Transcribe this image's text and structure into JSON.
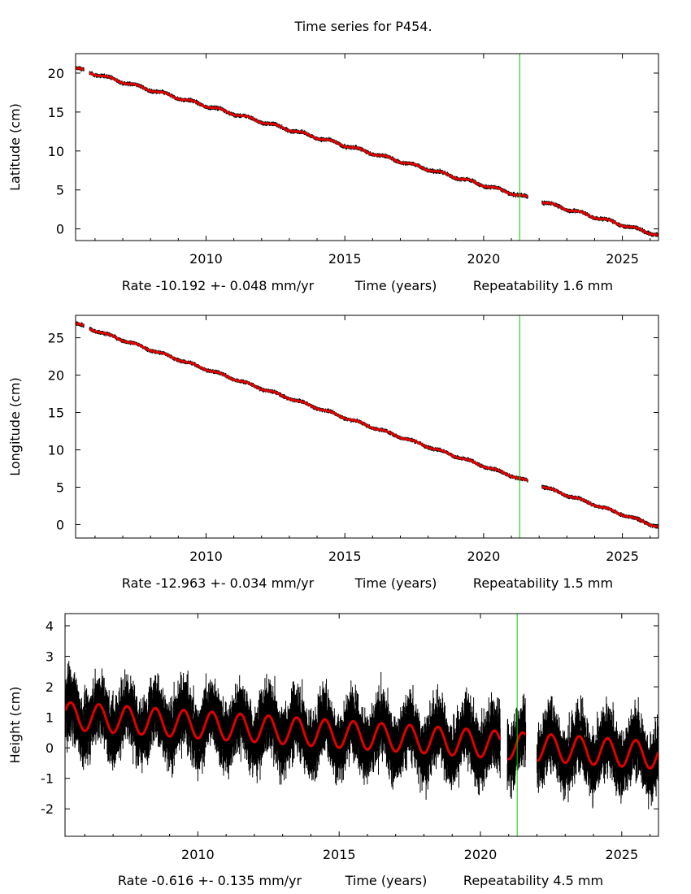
{
  "page": {
    "title": "Time series for P454."
  },
  "chart_data": [
    {
      "type": "scatter",
      "ylabel": "Latitude (cm)",
      "xlabel": "Time (years)",
      "rate_text": "Rate -10.192 +- 0.048 mm/yr",
      "repeatability_text": "Repeatability 1.6 mm",
      "xlim": [
        2005.3,
        2026.3
      ],
      "ylim": [
        -1.5,
        22.5
      ],
      "xticks": [
        2010,
        2015,
        2020,
        2025
      ],
      "xtick_labels": [
        "2010",
        "2015",
        "2020",
        "2025"
      ],
      "yticks": [
        0,
        5,
        10,
        15,
        20
      ],
      "ytick_labels": [
        "0",
        "5",
        "10",
        "15",
        "20"
      ],
      "marker_line_x": 2021.3,
      "gaps": [
        [
          2005.6,
          2005.8
        ],
        [
          2021.6,
          2022.1
        ]
      ],
      "trend": {
        "start_value": 20.6,
        "rate_per_year": -1.0192,
        "seasonal_amplitude": 0.15
      },
      "observation_noise": 0.2,
      "series": [
        {
          "label": "observations",
          "color": "#000000"
        },
        {
          "label": "model",
          "color": "#e00000"
        }
      ]
    },
    {
      "type": "scatter",
      "ylabel": "Longitude (cm)",
      "xlabel": "Time (years)",
      "rate_text": "Rate -12.963 +- 0.034 mm/yr",
      "repeatability_text": "Repeatability 1.5 mm",
      "xlim": [
        2005.3,
        2026.3
      ],
      "ylim": [
        -1.8,
        28
      ],
      "xticks": [
        2010,
        2015,
        2020,
        2025
      ],
      "xtick_labels": [
        "2010",
        "2015",
        "2020",
        "2025"
      ],
      "yticks": [
        0,
        5,
        10,
        15,
        20,
        25
      ],
      "ytick_labels": [
        "0",
        "5",
        "10",
        "15",
        "20",
        "25"
      ],
      "marker_line_x": 2021.3,
      "gaps": [
        [
          2005.6,
          2005.8
        ],
        [
          2021.6,
          2022.1
        ]
      ],
      "trend": {
        "start_value": 26.9,
        "rate_per_year": -1.2963,
        "seasonal_amplitude": 0.12
      },
      "observation_noise": 0.2,
      "series": [
        {
          "label": "observations",
          "color": "#000000"
        },
        {
          "label": "model",
          "color": "#e00000"
        }
      ]
    },
    {
      "type": "scatter",
      "ylabel": "Height (cm)",
      "xlabel": "Time (years)",
      "rate_text": "Rate -0.616 +- 0.135 mm/yr",
      "repeatability_text": "Repeatability 4.5 mm",
      "xlim": [
        2005.3,
        2026.3
      ],
      "ylim": [
        -2.9,
        4.4
      ],
      "xticks": [
        2010,
        2015,
        2020,
        2025
      ],
      "xtick_labels": [
        "2010",
        "2015",
        "2020",
        "2025"
      ],
      "yticks": [
        -2,
        -1,
        0,
        1,
        2,
        3,
        4
      ],
      "ytick_labels": [
        "-2",
        "-1",
        "0",
        "1",
        "2",
        "3",
        "4"
      ],
      "marker_line_x": 2021.3,
      "gaps": [
        [
          2020.7,
          2020.95
        ],
        [
          2021.6,
          2022.0
        ]
      ],
      "trend": {
        "start_value": 1.05,
        "rate_per_year": -0.0616,
        "seasonal_amplitude": 0.45
      },
      "observation_noise": 0.55,
      "series": [
        {
          "label": "observations",
          "color": "#000000"
        },
        {
          "label": "model",
          "color": "#e00000"
        }
      ]
    }
  ],
  "colors": {
    "observations": "#000000",
    "model": "#e00000",
    "marker_line": "#00cc00",
    "frame": "#000000"
  }
}
